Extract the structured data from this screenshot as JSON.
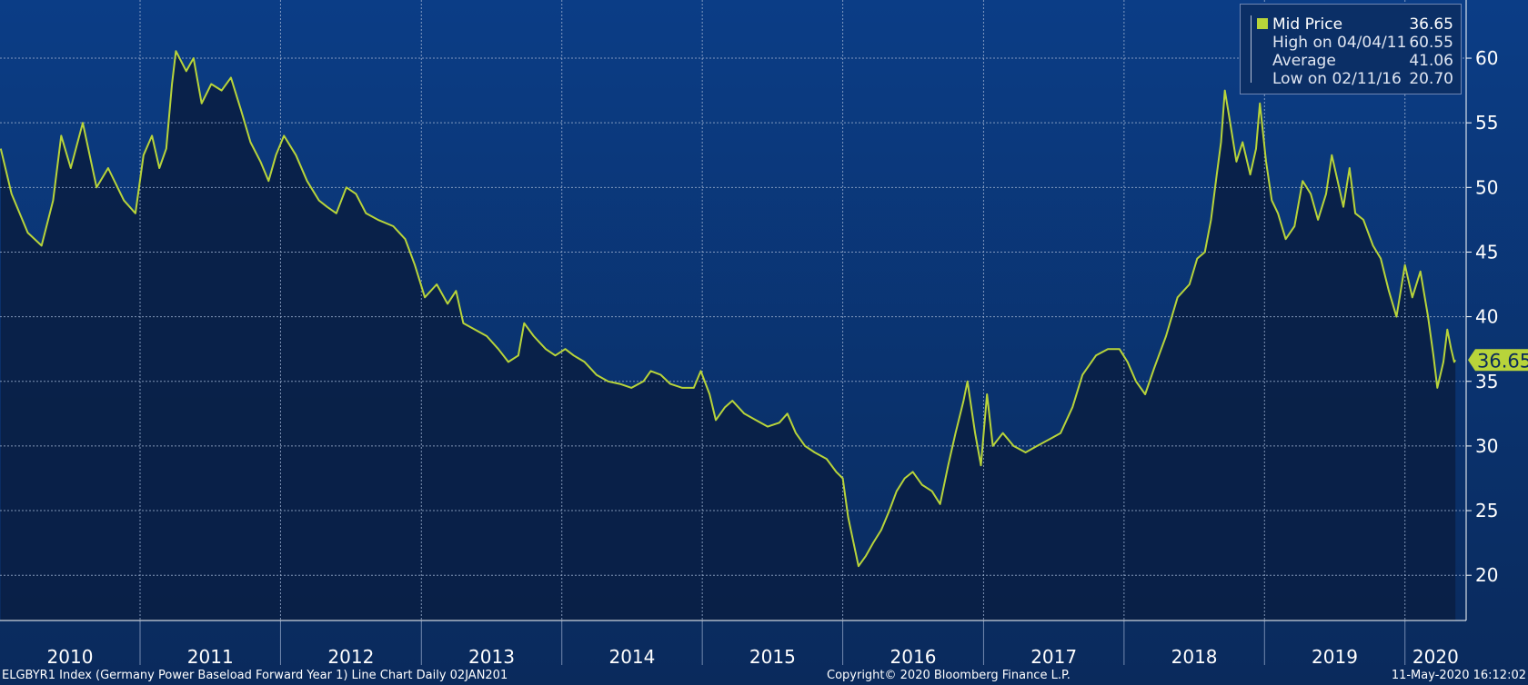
{
  "chart_data": {
    "type": "area",
    "x_labels": [
      "2010",
      "2011",
      "2012",
      "2013",
      "2014",
      "2015",
      "2016",
      "2017",
      "2018",
      "2019",
      "2020"
    ],
    "y_ticks": [
      20,
      25,
      30,
      35,
      40,
      45,
      50,
      55,
      60
    ],
    "ylim": [
      16.5,
      64.5
    ],
    "xlim": [
      "2010-01-02",
      "2020-06-08"
    ],
    "grid": true,
    "legend_position": "top-right",
    "series": [
      {
        "name": "Mid Price",
        "color": "#b8d43a",
        "points": [
          [
            "2010-01-04",
            53.0
          ],
          [
            "2010-02-01",
            49.5
          ],
          [
            "2010-03-15",
            46.5
          ],
          [
            "2010-04-20",
            45.5
          ],
          [
            "2010-05-20",
            49.0
          ],
          [
            "2010-06-10",
            54.0
          ],
          [
            "2010-07-05",
            51.5
          ],
          [
            "2010-08-05",
            55.0
          ],
          [
            "2010-09-10",
            50.0
          ],
          [
            "2010-10-10",
            51.5
          ],
          [
            "2010-11-20",
            49.0
          ],
          [
            "2010-12-20",
            48.0
          ],
          [
            "2011-01-10",
            52.5
          ],
          [
            "2011-02-01",
            54.0
          ],
          [
            "2011-02-20",
            51.5
          ],
          [
            "2011-03-10",
            53.0
          ],
          [
            "2011-03-25",
            58.0
          ],
          [
            "2011-04-04",
            60.55
          ],
          [
            "2011-05-01",
            59.0
          ],
          [
            "2011-05-20",
            60.0
          ],
          [
            "2011-06-10",
            56.5
          ],
          [
            "2011-07-05",
            58.0
          ],
          [
            "2011-08-01",
            57.5
          ],
          [
            "2011-08-25",
            58.5
          ],
          [
            "2011-09-20",
            56.0
          ],
          [
            "2011-10-15",
            53.5
          ],
          [
            "2011-11-10",
            52.0
          ],
          [
            "2011-12-01",
            50.5
          ],
          [
            "2011-12-20",
            52.5
          ],
          [
            "2012-01-10",
            54.0
          ],
          [
            "2012-02-10",
            52.5
          ],
          [
            "2012-03-10",
            50.5
          ],
          [
            "2012-04-10",
            49.0
          ],
          [
            "2012-05-01",
            48.5
          ],
          [
            "2012-05-25",
            48.0
          ],
          [
            "2012-06-20",
            50.0
          ],
          [
            "2012-07-15",
            49.5
          ],
          [
            "2012-08-10",
            48.0
          ],
          [
            "2012-09-10",
            47.5
          ],
          [
            "2012-10-20",
            47.0
          ],
          [
            "2012-11-20",
            46.0
          ],
          [
            "2012-12-15",
            44.0
          ],
          [
            "2013-01-10",
            41.5
          ],
          [
            "2013-02-10",
            42.5
          ],
          [
            "2013-03-10",
            41.0
          ],
          [
            "2013-04-01",
            42.0
          ],
          [
            "2013-04-20",
            39.5
          ],
          [
            "2013-05-20",
            39.0
          ],
          [
            "2013-06-20",
            38.5
          ],
          [
            "2013-07-20",
            37.5
          ],
          [
            "2013-08-15",
            36.5
          ],
          [
            "2013-09-10",
            37.0
          ],
          [
            "2013-09-25",
            39.5
          ],
          [
            "2013-10-20",
            38.5
          ],
          [
            "2013-11-20",
            37.5
          ],
          [
            "2013-12-15",
            37.0
          ],
          [
            "2014-01-10",
            37.5
          ],
          [
            "2014-02-01",
            37.0
          ],
          [
            "2014-03-01",
            36.5
          ],
          [
            "2014-04-01",
            35.5
          ],
          [
            "2014-05-01",
            35.0
          ],
          [
            "2014-06-01",
            34.8
          ],
          [
            "2014-07-01",
            34.5
          ],
          [
            "2014-08-01",
            35.0
          ],
          [
            "2014-08-20",
            35.8
          ],
          [
            "2014-09-15",
            35.5
          ],
          [
            "2014-10-10",
            34.8
          ],
          [
            "2014-11-10",
            34.5
          ],
          [
            "2014-12-10",
            34.5
          ],
          [
            "2014-12-28",
            35.8
          ],
          [
            "2015-01-20",
            34.0
          ],
          [
            "2015-02-05",
            32.0
          ],
          [
            "2015-03-01",
            33.0
          ],
          [
            "2015-03-20",
            33.5
          ],
          [
            "2015-04-20",
            32.5
          ],
          [
            "2015-05-20",
            32.0
          ],
          [
            "2015-06-20",
            31.5
          ],
          [
            "2015-07-20",
            31.8
          ],
          [
            "2015-08-10",
            32.5
          ],
          [
            "2015-09-01",
            31.0
          ],
          [
            "2015-09-25",
            30.0
          ],
          [
            "2015-10-20",
            29.5
          ],
          [
            "2015-11-20",
            29.0
          ],
          [
            "2015-12-15",
            28.0
          ],
          [
            "2016-01-01",
            27.5
          ],
          [
            "2016-01-15",
            24.5
          ],
          [
            "2016-02-11",
            20.7
          ],
          [
            "2016-03-01",
            21.5
          ],
          [
            "2016-03-20",
            22.5
          ],
          [
            "2016-04-10",
            23.5
          ],
          [
            "2016-05-01",
            25.0
          ],
          [
            "2016-05-20",
            26.5
          ],
          [
            "2016-06-10",
            27.5
          ],
          [
            "2016-07-01",
            28.0
          ],
          [
            "2016-07-25",
            27.0
          ],
          [
            "2016-08-20",
            26.5
          ],
          [
            "2016-09-10",
            25.5
          ],
          [
            "2016-10-01",
            28.5
          ],
          [
            "2016-10-20",
            31.0
          ],
          [
            "2016-11-10",
            33.5
          ],
          [
            "2016-11-20",
            35.0
          ],
          [
            "2016-12-10",
            31.0
          ],
          [
            "2016-12-25",
            28.5
          ],
          [
            "2017-01-10",
            34.0
          ],
          [
            "2017-01-25",
            30.0
          ],
          [
            "2017-02-20",
            31.0
          ],
          [
            "2017-03-20",
            30.0
          ],
          [
            "2017-04-20",
            29.5
          ],
          [
            "2017-05-20",
            30.0
          ],
          [
            "2017-06-20",
            30.5
          ],
          [
            "2017-07-20",
            31.0
          ],
          [
            "2017-08-20",
            33.0
          ],
          [
            "2017-09-15",
            35.5
          ],
          [
            "2017-10-20",
            37.0
          ],
          [
            "2017-11-20",
            37.5
          ],
          [
            "2017-12-20",
            37.5
          ],
          [
            "2018-01-10",
            36.5
          ],
          [
            "2018-02-01",
            35.0
          ],
          [
            "2018-02-25",
            34.0
          ],
          [
            "2018-03-20",
            36.0
          ],
          [
            "2018-04-20",
            38.5
          ],
          [
            "2018-05-20",
            41.5
          ],
          [
            "2018-06-20",
            42.5
          ],
          [
            "2018-07-10",
            44.5
          ],
          [
            "2018-07-30",
            45.0
          ],
          [
            "2018-08-15",
            47.5
          ],
          [
            "2018-08-30",
            51.0
          ],
          [
            "2018-09-10",
            53.5
          ],
          [
            "2018-09-20",
            57.5
          ],
          [
            "2018-10-01",
            55.5
          ],
          [
            "2018-10-20",
            52.0
          ],
          [
            "2018-11-05",
            53.5
          ],
          [
            "2018-11-25",
            51.0
          ],
          [
            "2018-12-10",
            53.0
          ],
          [
            "2018-12-20",
            56.5
          ],
          [
            "2019-01-05",
            52.0
          ],
          [
            "2019-01-20",
            49.0
          ],
          [
            "2019-02-05",
            48.0
          ],
          [
            "2019-02-25",
            46.0
          ],
          [
            "2019-03-20",
            47.0
          ],
          [
            "2019-04-10",
            50.5
          ],
          [
            "2019-05-01",
            49.5
          ],
          [
            "2019-05-20",
            47.5
          ],
          [
            "2019-06-10",
            49.5
          ],
          [
            "2019-06-25",
            52.5
          ],
          [
            "2019-07-10",
            50.5
          ],
          [
            "2019-07-25",
            48.5
          ],
          [
            "2019-08-10",
            51.5
          ],
          [
            "2019-08-25",
            48.0
          ],
          [
            "2019-09-15",
            47.5
          ],
          [
            "2019-10-10",
            45.5
          ],
          [
            "2019-10-30",
            44.5
          ],
          [
            "2019-11-20",
            42.0
          ],
          [
            "2019-12-10",
            40.0
          ],
          [
            "2020-01-01",
            44.0
          ],
          [
            "2020-01-20",
            41.5
          ],
          [
            "2020-02-10",
            43.5
          ],
          [
            "2020-03-01",
            40.0
          ],
          [
            "2020-03-15",
            37.0
          ],
          [
            "2020-03-25",
            34.5
          ],
          [
            "2020-04-10",
            36.5
          ],
          [
            "2020-04-20",
            39.0
          ],
          [
            "2020-04-30",
            37.5
          ],
          [
            "2020-05-08",
            36.5
          ],
          [
            "2020-05-11",
            36.65
          ]
        ]
      }
    ],
    "legend": {
      "mid_price_label": "Mid Price",
      "mid_price_value": "36.65",
      "high_label": "High on 04/04/11",
      "high_value": "60.55",
      "average_label": "Average",
      "average_value": "41.06",
      "low_label": "Low on 02/11/16",
      "low_value": "20.70"
    },
    "last_value_label": "36.65"
  },
  "colors": {
    "background_top": "#0b3d86",
    "background_bottom": "#0a2a5c",
    "area_fill": "#0a1f45",
    "line": "#b8d43a",
    "grid": "#9fb2d1",
    "axis_text": "#ffffff"
  },
  "footer": {
    "left": "ELGBYR1 Index (Germany Power Baseload Forward Year 1) Line Chart  Daily 02JAN201",
    "middle": "Copyright© 2020 Bloomberg Finance L.P.",
    "right": "11-May-2020 16:12:02"
  }
}
